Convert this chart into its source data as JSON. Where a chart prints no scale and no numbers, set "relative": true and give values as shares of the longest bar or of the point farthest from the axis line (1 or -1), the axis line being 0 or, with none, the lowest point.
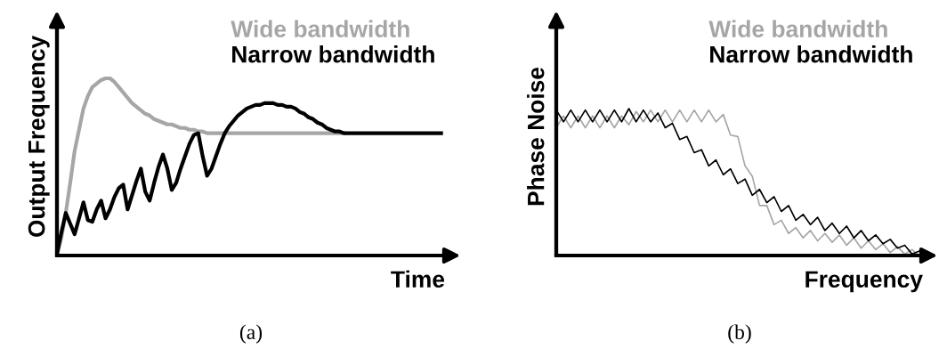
{
  "chart_data": [
    {
      "type": "line",
      "relative": true,
      "xlabel": "Time",
      "ylabel": "Output Frequency",
      "legend": "top right",
      "annotations": [
        "(a)"
      ],
      "categories": [
        null,
        null,
        null,
        null,
        null,
        null,
        null,
        null,
        null,
        null,
        null,
        null,
        null,
        null,
        null,
        null,
        null,
        null,
        null,
        null,
        null,
        null,
        null,
        null,
        null,
        null,
        null,
        null,
        null,
        null,
        null,
        null,
        null,
        null,
        null,
        null,
        null,
        null,
        null,
        null,
        null,
        null,
        null,
        null,
        null,
        null,
        null,
        null,
        null,
        null,
        null,
        null,
        null,
        null,
        null,
        null,
        null,
        null,
        null,
        null,
        null,
        null,
        null,
        null,
        null,
        null,
        null,
        null,
        null,
        null,
        null,
        null,
        null,
        null,
        null,
        null,
        null,
        null,
        null,
        null,
        null,
        null,
        null,
        null,
        null,
        null,
        null,
        null
      ],
      "series": [
        {
          "name": "Wide bandwidth",
          "color": "#a6a6a6",
          "values": [
            0.0,
            0.1,
            0.24,
            0.41,
            0.59,
            0.71,
            0.83,
            0.9,
            0.95,
            0.97,
            0.99,
            1.0,
            1.0,
            0.98,
            0.95,
            0.92,
            0.89,
            0.86,
            0.84,
            0.82,
            0.8,
            0.79,
            0.77,
            0.76,
            0.75,
            0.74,
            0.74,
            0.73,
            0.72,
            0.72,
            0.71,
            0.71,
            0.7,
            0.7,
            0.69,
            0.69,
            0.69,
            0.69,
            0.69,
            0.69,
            0.69,
            0.69,
            0.69,
            0.69,
            0.69,
            0.69,
            0.69,
            0.69,
            0.69,
            0.69,
            0.69,
            0.69,
            0.69,
            0.69,
            0.69,
            0.69,
            0.69,
            0.69,
            0.69,
            0.69,
            0.69,
            0.69,
            0.69,
            0.69,
            0.69,
            0.69,
            null,
            null,
            null,
            null,
            null,
            null,
            null,
            null,
            null,
            null,
            null,
            null,
            null,
            null,
            null,
            null,
            null,
            null,
            null,
            null,
            null,
            null
          ]
        },
        {
          "name": "Narrow bandwidth",
          "color": "#000000",
          "values": [
            0.01,
            0.13,
            0.24,
            0.18,
            0.12,
            0.21,
            0.3,
            0.2,
            0.19,
            0.26,
            0.31,
            0.21,
            0.26,
            0.33,
            0.38,
            0.4,
            0.26,
            0.34,
            0.42,
            0.49,
            0.36,
            0.31,
            0.41,
            0.5,
            0.57,
            0.49,
            0.37,
            0.41,
            0.49,
            0.56,
            0.63,
            0.68,
            0.69,
            0.56,
            0.45,
            0.49,
            0.56,
            0.63,
            0.69,
            0.73,
            0.76,
            0.79,
            0.81,
            0.83,
            0.84,
            0.85,
            0.85,
            0.86,
            0.86,
            0.86,
            0.85,
            0.85,
            0.84,
            0.84,
            0.83,
            0.81,
            0.8,
            0.78,
            0.77,
            0.75,
            0.74,
            0.72,
            0.71,
            0.7,
            0.7,
            0.69,
            0.69,
            0.69,
            0.69,
            0.69,
            0.69,
            0.69,
            0.69,
            0.69,
            0.69,
            0.69,
            0.69,
            0.69,
            0.69,
            0.69,
            0.69,
            0.69,
            0.69,
            0.69,
            0.69,
            0.69,
            0.69,
            0.69
          ]
        }
      ]
    },
    {
      "type": "line",
      "relative": true,
      "xlabel": "Frequency",
      "ylabel": "Phase Noise",
      "legend": "top right",
      "annotations": [
        "(b)"
      ],
      "categories": [
        null,
        null,
        null,
        null,
        null,
        null,
        null,
        null,
        null,
        null,
        null,
        null,
        null,
        null,
        null,
        null,
        null,
        null,
        null,
        null,
        null,
        null,
        null,
        null,
        null,
        null,
        null,
        null,
        null,
        null,
        null,
        null,
        null,
        null,
        null,
        null,
        null,
        null,
        null,
        null,
        null,
        null,
        null,
        null,
        null,
        null,
        null,
        null,
        null,
        null,
        null
      ],
      "series": [
        {
          "name": "Wide bandwidth",
          "color": "#a6a6a6",
          "values": [
            0.87,
            0.95,
            0.87,
            0.95,
            0.87,
            0.95,
            0.87,
            0.95,
            0.87,
            0.95,
            0.89,
            0.98,
            0.91,
            0.99,
            0.91,
            0.99,
            0.91,
            0.99,
            0.91,
            0.99,
            0.91,
            0.99,
            0.91,
            0.96,
            0.82,
            0.81,
            0.61,
            0.54,
            0.34,
            0.34,
            0.21,
            0.24,
            0.15,
            0.19,
            0.12,
            0.17,
            0.1,
            0.15,
            0.09,
            0.14,
            0.07,
            0.12,
            0.05,
            0.1,
            0.04,
            0.08,
            0.02,
            0.06,
            0.01,
            0.04,
            0.0
          ]
        },
        {
          "name": "Narrow bandwidth",
          "color": "#000000",
          "values": [
            0.99,
            0.91,
            0.99,
            0.91,
            0.99,
            0.91,
            0.99,
            0.91,
            0.99,
            0.91,
            1.0,
            0.91,
            0.99,
            0.91,
            0.97,
            0.87,
            0.9,
            0.79,
            0.81,
            0.7,
            0.72,
            0.61,
            0.65,
            0.55,
            0.59,
            0.49,
            0.52,
            0.41,
            0.45,
            0.36,
            0.4,
            0.3,
            0.34,
            0.24,
            0.28,
            0.21,
            0.26,
            0.17,
            0.22,
            0.15,
            0.2,
            0.12,
            0.17,
            0.1,
            0.14,
            0.08,
            0.11,
            0.05,
            0.07,
            0.01,
            0.03
          ]
        }
      ]
    }
  ]
}
